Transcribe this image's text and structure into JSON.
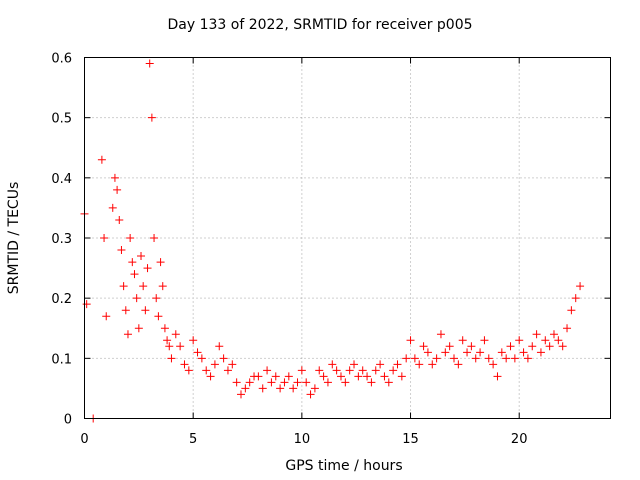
{
  "chart_data": {
    "type": "scatter",
    "title": "Day 133 of 2022, SRMTID for receiver p005",
    "xlabel": "GPS time / hours",
    "ylabel": "SRMTID / TECUs",
    "xlim": [
      0,
      24.2
    ],
    "ylim": [
      0,
      0.6
    ],
    "xticks": [
      0,
      5,
      10,
      15,
      20
    ],
    "xtick_labels": [
      "0",
      "5",
      "10",
      "15",
      "20"
    ],
    "yticks": [
      0,
      0.1,
      0.2,
      0.3,
      0.4,
      0.5,
      0.6
    ],
    "ytick_labels": [
      "0",
      "0.1",
      "0.2",
      "0.3",
      "0.4",
      "0.5",
      "0.6"
    ],
    "grid": true,
    "marker": "+",
    "marker_color": "#ff0000",
    "series": [
      {
        "name": "SRMTID",
        "x": [
          0.0,
          0.1,
          0.4,
          0.8,
          0.9,
          1.0,
          1.3,
          1.4,
          1.5,
          1.6,
          1.7,
          1.8,
          1.9,
          2.0,
          2.1,
          2.2,
          2.3,
          2.4,
          2.5,
          2.6,
          2.7,
          2.8,
          2.9,
          3.0,
          3.1,
          3.2,
          3.3,
          3.4,
          3.5,
          3.6,
          3.7,
          3.8,
          3.9,
          4.0,
          4.2,
          4.4,
          4.6,
          4.8,
          5.0,
          5.2,
          5.4,
          5.6,
          5.8,
          6.0,
          6.2,
          6.4,
          6.6,
          6.8,
          7.0,
          7.2,
          7.4,
          7.6,
          7.8,
          8.0,
          8.2,
          8.4,
          8.6,
          8.8,
          9.0,
          9.2,
          9.4,
          9.6,
          9.8,
          10.0,
          10.2,
          10.4,
          10.6,
          10.8,
          11.0,
          11.2,
          11.4,
          11.6,
          11.8,
          12.0,
          12.2,
          12.4,
          12.6,
          12.8,
          13.0,
          13.2,
          13.4,
          13.6,
          13.8,
          14.0,
          14.2,
          14.4,
          14.6,
          14.8,
          15.0,
          15.2,
          15.4,
          15.6,
          15.8,
          16.0,
          16.2,
          16.4,
          16.6,
          16.8,
          17.0,
          17.2,
          17.4,
          17.6,
          17.8,
          18.0,
          18.2,
          18.4,
          18.6,
          18.8,
          19.0,
          19.2,
          19.4,
          19.6,
          19.8,
          20.0,
          20.2,
          20.4,
          20.6,
          20.8,
          21.0,
          21.2,
          21.4,
          21.6,
          21.8,
          22.0,
          22.2,
          22.4,
          22.6,
          22.8
        ],
        "y": [
          0.34,
          0.19,
          0.0,
          0.43,
          0.3,
          0.17,
          0.35,
          0.4,
          0.38,
          0.33,
          0.28,
          0.22,
          0.18,
          0.14,
          0.3,
          0.26,
          0.24,
          0.2,
          0.15,
          0.27,
          0.22,
          0.18,
          0.25,
          0.59,
          0.5,
          0.3,
          0.2,
          0.17,
          0.26,
          0.22,
          0.15,
          0.13,
          0.12,
          0.1,
          0.14,
          0.12,
          0.09,
          0.08,
          0.13,
          0.11,
          0.1,
          0.08,
          0.07,
          0.09,
          0.12,
          0.1,
          0.08,
          0.09,
          0.06,
          0.04,
          0.05,
          0.06,
          0.07,
          0.07,
          0.05,
          0.08,
          0.06,
          0.07,
          0.05,
          0.06,
          0.07,
          0.05,
          0.06,
          0.08,
          0.06,
          0.04,
          0.05,
          0.08,
          0.07,
          0.06,
          0.09,
          0.08,
          0.07,
          0.06,
          0.08,
          0.09,
          0.07,
          0.08,
          0.07,
          0.06,
          0.08,
          0.09,
          0.07,
          0.06,
          0.08,
          0.09,
          0.07,
          0.1,
          0.13,
          0.1,
          0.09,
          0.12,
          0.11,
          0.09,
          0.1,
          0.14,
          0.11,
          0.12,
          0.1,
          0.09,
          0.13,
          0.11,
          0.12,
          0.1,
          0.11,
          0.13,
          0.1,
          0.09,
          0.07,
          0.11,
          0.1,
          0.12,
          0.1,
          0.13,
          0.11,
          0.1,
          0.12,
          0.14,
          0.11,
          0.13,
          0.12,
          0.14,
          0.13,
          0.12,
          0.15,
          0.18,
          0.2,
          0.22
        ]
      }
    ]
  }
}
